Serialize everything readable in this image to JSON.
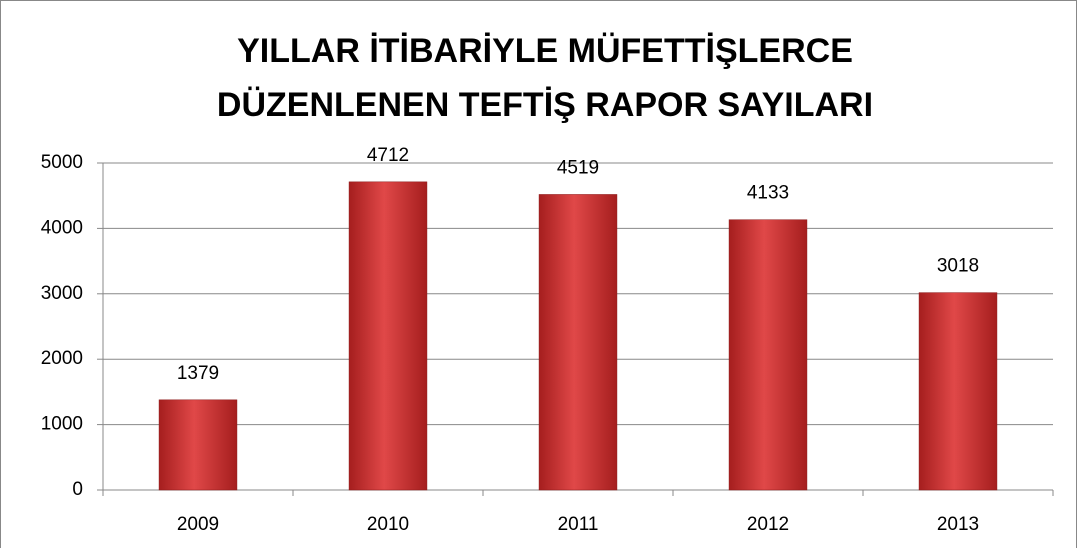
{
  "chart_data": {
    "type": "bar",
    "title": [
      "YILLAR İTİBARİYLE MÜFETTİŞLERCE",
      "DÜZENLENEN  TEFTİŞ RAPOR SAYILARI"
    ],
    "categories": [
      "2009",
      "2010",
      "2011",
      "2012",
      "2013"
    ],
    "values": [
      1379,
      4712,
      4519,
      4133,
      3018
    ],
    "color": "#d23a3a",
    "ylim": [
      0,
      5000
    ],
    "yticks": [
      0,
      1000,
      2000,
      3000,
      4000,
      5000
    ],
    "grid": true
  }
}
